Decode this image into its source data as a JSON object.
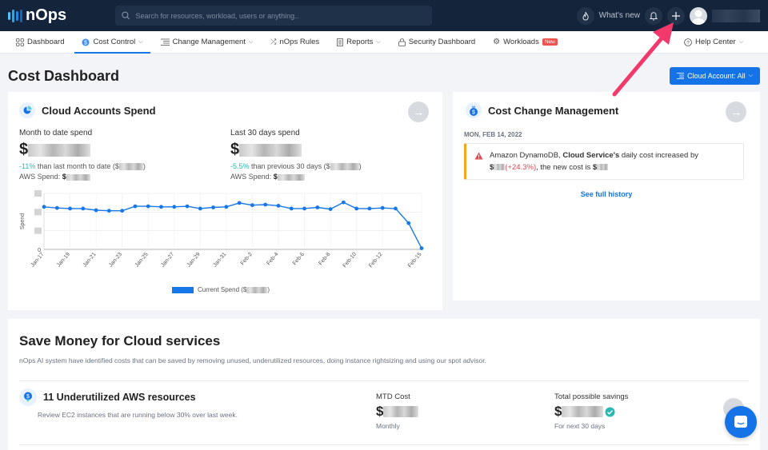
{
  "topbar": {
    "logo_text": "nOps",
    "search_placeholder": "Search for resources, workload, users or anything..",
    "whats_new": "What's new"
  },
  "nav": {
    "items": [
      {
        "label": "Dashboard",
        "icon": "grid-icon"
      },
      {
        "label": "Cost Control",
        "icon": "dollar-circle-icon",
        "active": true,
        "dropdown": true
      },
      {
        "label": "Change Management",
        "icon": "list-icon",
        "dropdown": true
      },
      {
        "label": "nOps Rules",
        "icon": "shuffle-icon"
      },
      {
        "label": "Reports",
        "icon": "report-icon",
        "dropdown": true
      },
      {
        "label": "Security Dashboard",
        "icon": "lock-icon"
      },
      {
        "label": "Workloads",
        "icon": "gear-icon",
        "badge": "New"
      }
    ],
    "help_center": "Help Center"
  },
  "page": {
    "title": "Cost Dashboard",
    "cloud_account_button": "Cloud Account: All"
  },
  "cloud_spend": {
    "title": "Cloud Accounts Spend",
    "mtd": {
      "label": "Month to date spend",
      "currency": "$",
      "change_pct": "-11%",
      "change_text": " than last month to date ($",
      "change_close": ")",
      "aws_label": "AWS Spend: ",
      "aws_currency": "$"
    },
    "last30": {
      "label": "Last 30 days spend",
      "currency": "$",
      "change_pct": "-5.5%",
      "change_text": " than previous 30 days ($",
      "change_close": ")",
      "aws_label": "AWS Spend: ",
      "aws_currency": "$"
    },
    "legend": "Current Spend ($",
    "legend_close": ")"
  },
  "chart_data": {
    "type": "line",
    "title": "",
    "xlabel": "",
    "ylabel": "Spend",
    "x": [
      "Jan-17",
      "Jan-18",
      "Jan-19",
      "Jan-20",
      "Jan-21",
      "Jan-22",
      "Jan-23",
      "Jan-24",
      "Jan-25",
      "Jan-26",
      "Jan-27",
      "Jan-28",
      "Jan-29",
      "Jan-30",
      "Jan-31",
      "Feb-1",
      "Feb-2",
      "Feb-3",
      "Feb-4",
      "Feb-5",
      "Feb-6",
      "Feb-7",
      "Feb-8",
      "Feb-9",
      "Feb-10",
      "Feb-11",
      "Feb-12",
      "Feb-13",
      "Feb-14",
      "Feb-15"
    ],
    "tick_labels": [
      "Jan-17",
      "Jan-19",
      "Jan-21",
      "Jan-23",
      "Jan-25",
      "Jan-27",
      "Jan-29",
      "Jan-31",
      "Feb-2",
      "Feb-4",
      "Feb-6",
      "Feb-8",
      "Feb-10",
      "Feb-12",
      "Feb-15"
    ],
    "series": [
      {
        "name": "Current Spend",
        "color": "#1677e8",
        "values": [
          76,
          74,
          73,
          73,
          70,
          69,
          69,
          77,
          77,
          76,
          76,
          77,
          73,
          75,
          76,
          83,
          79,
          80,
          78,
          73,
          73,
          75,
          72,
          84,
          73,
          73,
          74,
          73,
          47,
          2
        ]
      }
    ],
    "ylim": [
      0,
      100
    ],
    "y_ticks_visible": [
      "0"
    ],
    "grid": true,
    "legend_position": "bottom"
  },
  "cost_change": {
    "title": "Cost Change Management",
    "date": "MON, FEB 14, 2022",
    "alert_service": "Amazon DynamoDB, ",
    "alert_bold": "Cloud Service's",
    "alert_text": " daily cost increased by",
    "alert_currency": "$",
    "alert_pct": "(+24.3%)",
    "alert_new_cost": ", the new cost is ",
    "alert_new_currency": "$",
    "see_history": "See full history"
  },
  "save_money": {
    "title": "Save Money for Cloud services",
    "description": "nOps AI system have identified costs that can be saved by removing unused, underutilized resources, doing instance rightsizing and using our spot advisor.",
    "resource": {
      "title": "11 Underutilized AWS resources",
      "subtitle": "Review EC2 instances that are running below 30% over last week.",
      "mtd_label": "MTD Cost",
      "mtd_currency": "$",
      "mtd_sub": "Monthly",
      "savings_label": "Total possible savings",
      "savings_currency": "$",
      "savings_sub": "For next 30 days"
    }
  },
  "colors": {
    "accent": "#1473e6",
    "topbar": "#14243a",
    "teal": "#2bb7b3",
    "alert_warning": "#f5a623",
    "alert_red": "#e5484d",
    "annotation_arrow": "#f2396b"
  }
}
